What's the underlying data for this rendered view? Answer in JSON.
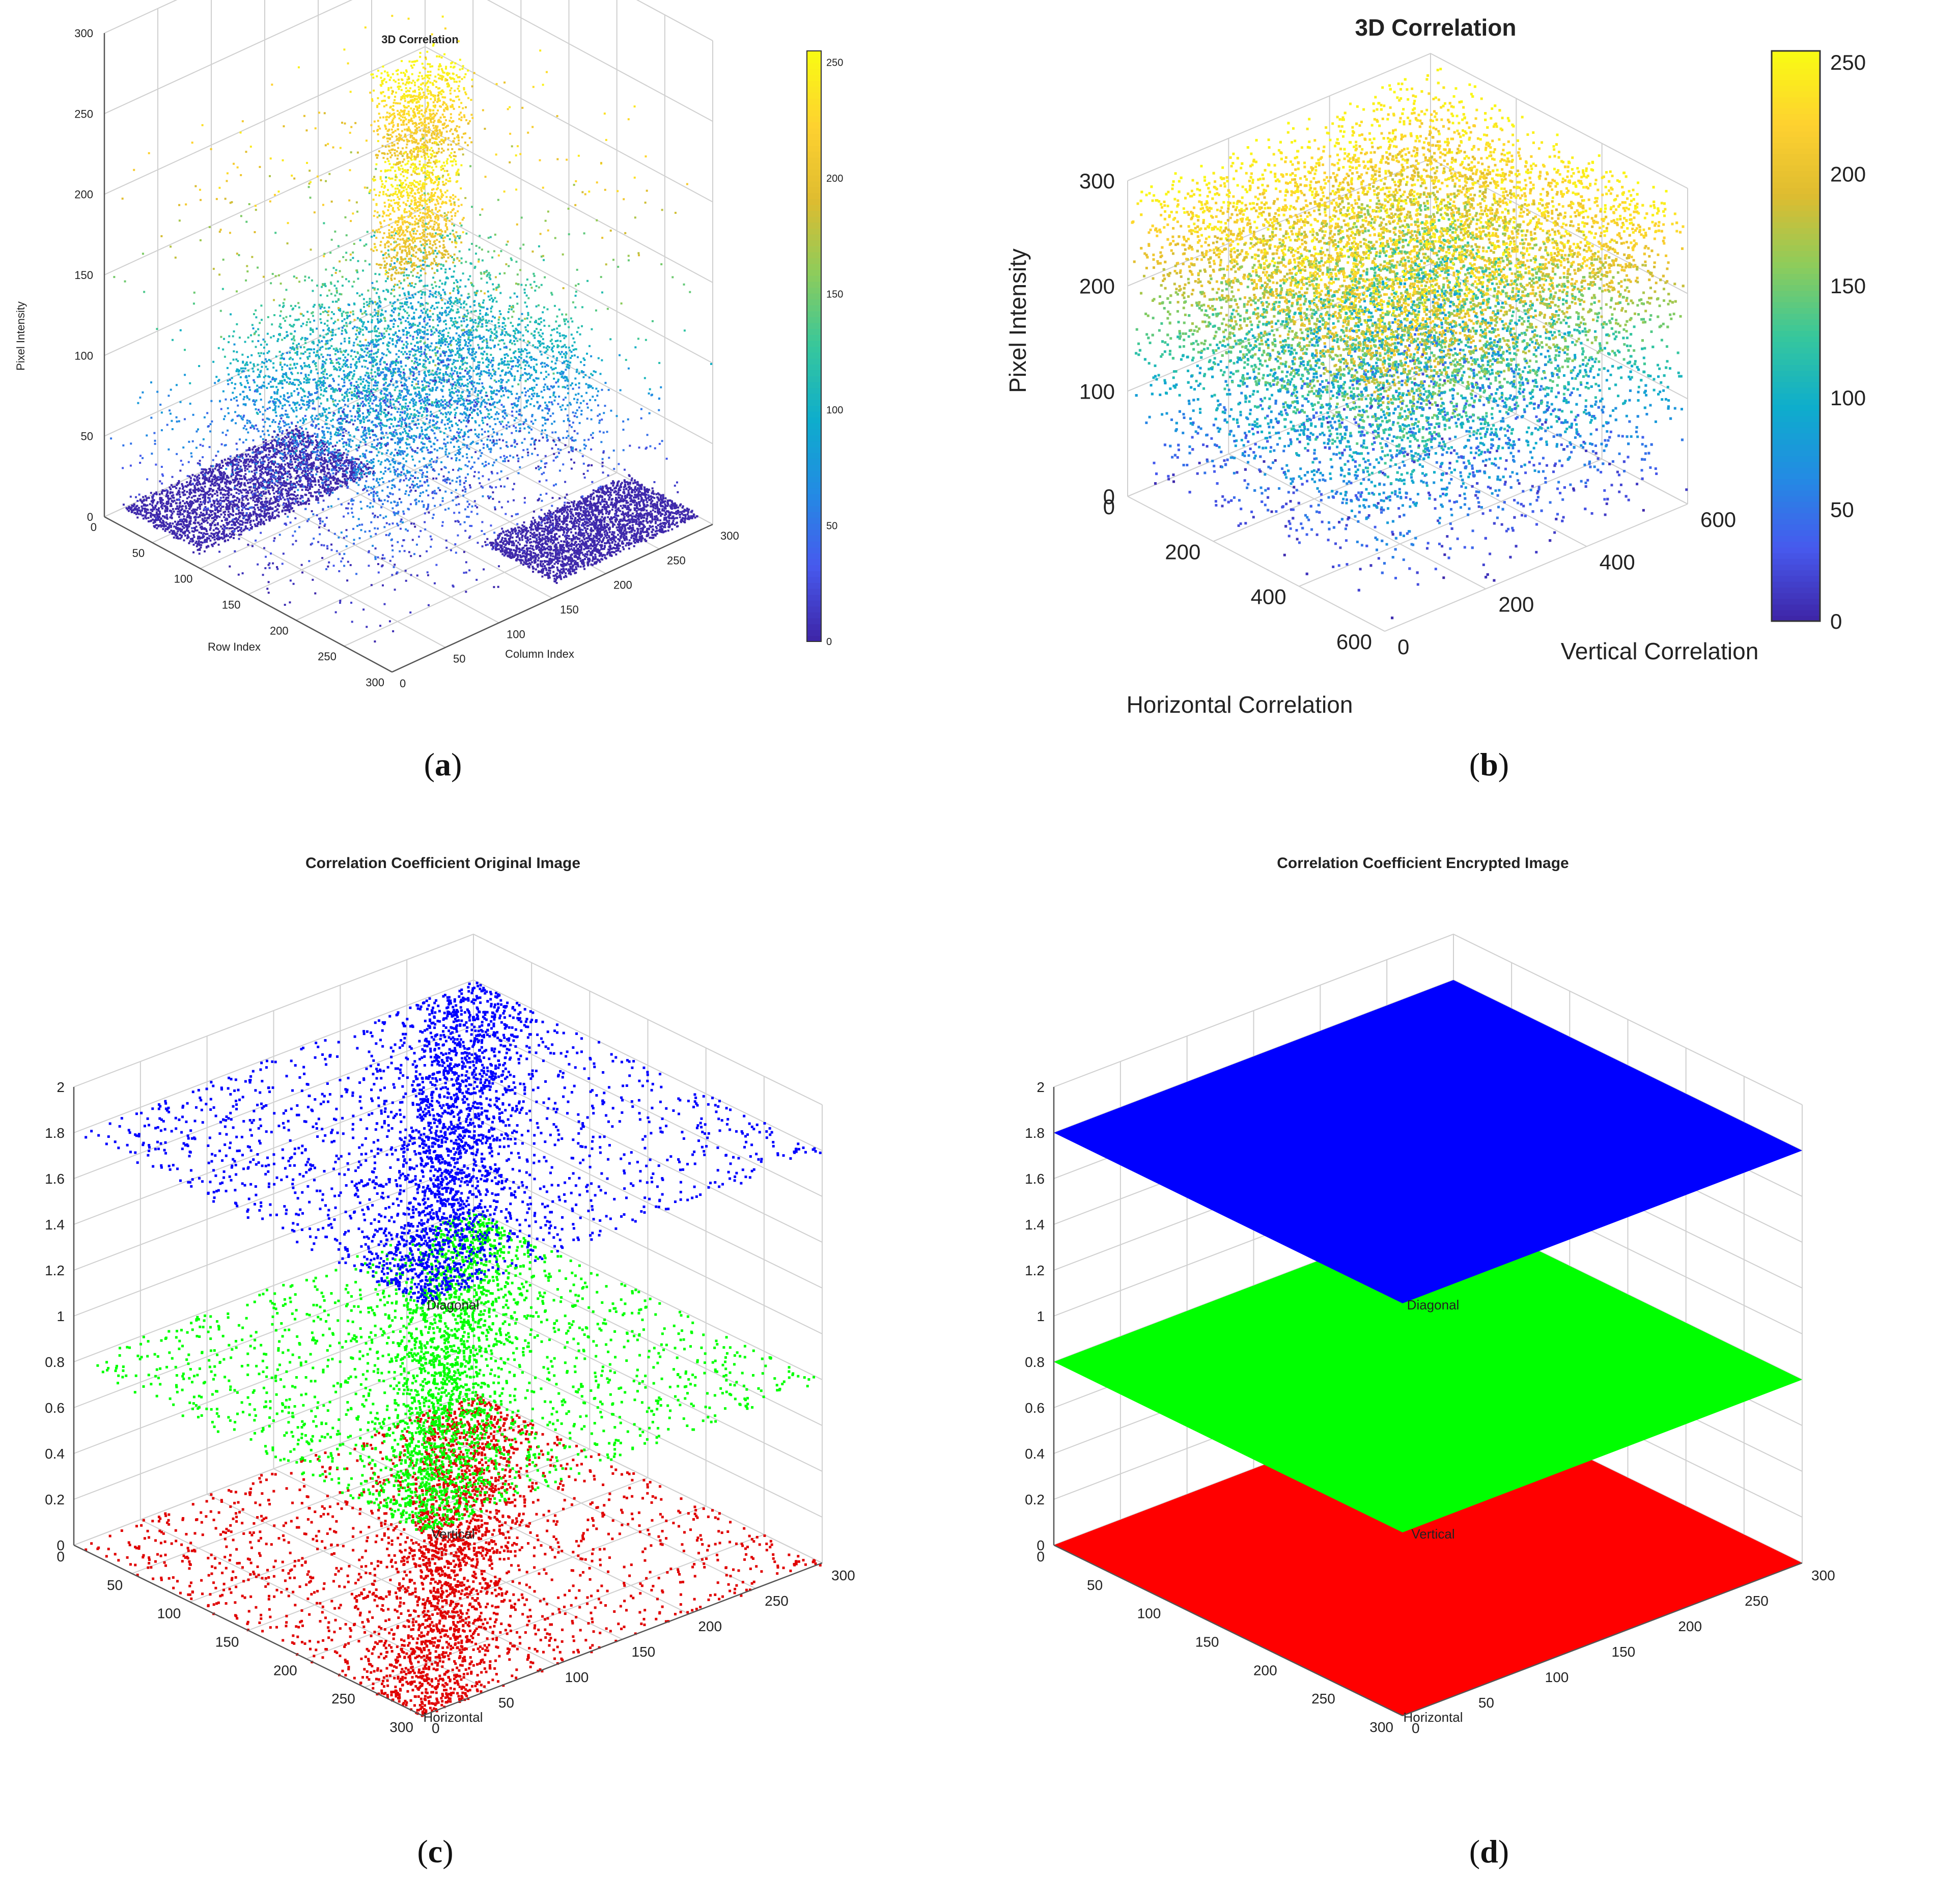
{
  "captions": [
    "a",
    "b",
    "c",
    "d"
  ],
  "chart_data": [
    {
      "type": "scatter",
      "title": "3D Correlation",
      "xlabel": "Row Index",
      "ylabel": "Column Index",
      "zlabel": "Pixel Intensity",
      "x_ticks": [
        "0",
        "50",
        "100",
        "150",
        "200",
        "250",
        "300"
      ],
      "y_ticks": [
        "0",
        "50",
        "100",
        "150",
        "200",
        "250",
        "300"
      ],
      "z_ticks": [
        "0",
        "50",
        "100",
        "150",
        "200",
        "250",
        "300"
      ],
      "colorbar_ticks": [
        "0",
        "50",
        "100",
        "150",
        "200",
        "250"
      ],
      "colormap": "parula",
      "xlim": [
        0,
        300
      ],
      "ylim": [
        0,
        300
      ],
      "zlim": [
        0,
        300
      ],
      "description_values": {
        "point_count_approx": 20000,
        "intensity_range": [
          0,
          255
        ]
      }
    },
    {
      "type": "scatter",
      "title": "3D Correlation",
      "xlabel": "Horizontal Correlation",
      "ylabel": "Vertical Correlation",
      "zlabel": "Pixel Intensity",
      "x_ticks": [
        "0",
        "200",
        "400",
        "600"
      ],
      "y_ticks": [
        "0",
        "200",
        "400",
        "600"
      ],
      "z_ticks": [
        "0",
        "100",
        "200",
        "300"
      ],
      "colorbar_ticks": [
        "0",
        "50",
        "100",
        "150",
        "200",
        "250"
      ],
      "colormap": "parula",
      "xlim": [
        0,
        600
      ],
      "ylim": [
        0,
        600
      ],
      "zlim": [
        0,
        300
      ]
    },
    {
      "type": "scatter",
      "title": "Correlation Coefficient Original Image",
      "z_ticks": [
        "0",
        "0.2",
        "0.4",
        "0.6",
        "0.8",
        "1",
        "1.2",
        "1.4",
        "1.6",
        "1.8",
        "2"
      ],
      "x_ticks": [
        "0",
        "50",
        "100",
        "150",
        "200",
        "250",
        "300"
      ],
      "y_ticks": [
        "0",
        "50",
        "100",
        "150",
        "200",
        "250",
        "300"
      ],
      "series": [
        {
          "name": "Horizontal",
          "color": "#e00000",
          "z": 0
        },
        {
          "name": "Vertical",
          "color": "#00ff00",
          "z": 0.8
        },
        {
          "name": "Diagonal",
          "color": "#0000ff",
          "z": 1.8
        }
      ],
      "xlim": [
        0,
        300
      ],
      "ylim": [
        0,
        300
      ],
      "zlim": [
        0,
        2
      ]
    },
    {
      "type": "scatter",
      "title": "Correlation Coefficient Encrypted Image",
      "z_ticks": [
        "0",
        "0.2",
        "0.4",
        "0.6",
        "0.8",
        "1",
        "1.2",
        "1.4",
        "1.6",
        "1.8",
        "2"
      ],
      "x_ticks": [
        "0",
        "50",
        "100",
        "150",
        "200",
        "250",
        "300"
      ],
      "y_ticks": [
        "0",
        "50",
        "100",
        "150",
        "200",
        "250",
        "300"
      ],
      "series": [
        {
          "name": "Horizontal",
          "color": "#ff0000",
          "z": 0
        },
        {
          "name": "Vertical",
          "color": "#00ff00",
          "z": 0.8
        },
        {
          "name": "Diagonal",
          "color": "#0000ff",
          "z": 1.8
        }
      ],
      "xlim": [
        0,
        300
      ],
      "ylim": [
        0,
        300
      ],
      "zlim": [
        0,
        2
      ]
    }
  ]
}
